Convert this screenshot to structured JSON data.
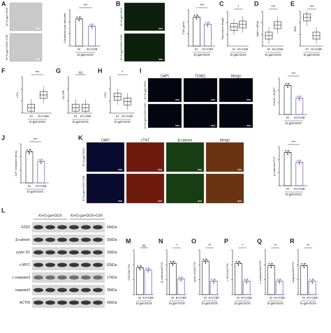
{
  "panels": [
    {
      "label": "A",
      "kind": "bar",
      "image_labels": [
        "KI+D-gal+DOX",
        "KI+D-gal+DOX+C59"
      ],
      "image_style": "bright",
      "y_label": "Cardiomyocyte diameter",
      "significance": "***",
      "groups": [
        "KI",
        "KI+C59"
      ],
      "treatment": "D-gal+DOX"
    },
    {
      "label": "B",
      "kind": "bar",
      "image_labels": [
        "KI+D-gal+DOX",
        "KI+D-gal+DOX+C59"
      ],
      "image_style": "wga",
      "y_label": "CSA (μm²)",
      "significance": "***",
      "groups": [
        "KI",
        "KI+C59"
      ],
      "treatment": "D-gal+DOX"
    },
    {
      "label": "C",
      "kind": "box",
      "y_label": "Sarcomere length",
      "significance": "*",
      "groups": [
        "KI",
        "KI+C59"
      ],
      "treatment": "D-gal+DOX"
    },
    {
      "label": "D",
      "kind": "box",
      "y_label": "Myh7 mRNA",
      "significance": "***",
      "groups": [
        "KI",
        "KI+C59"
      ],
      "treatment": "D-gal+DOX"
    },
    {
      "label": "E",
      "kind": "box",
      "y_label": "BNP",
      "significance": "***",
      "groups": [
        "KI",
        "KI+C59"
      ],
      "treatment": "D-gal+DOX"
    },
    {
      "label": "F",
      "kind": "box",
      "y_label": "cTnI",
      "significance": "***",
      "groups": [
        "KI",
        "KI+C59"
      ],
      "treatment": "D-gal+DOX"
    },
    {
      "label": "G",
      "kind": "box",
      "y_label": "CK-MB",
      "significance": "ns",
      "groups": [
        "KI",
        "KI+C59"
      ],
      "treatment": "D-gal+DOX"
    },
    {
      "label": "H",
      "kind": "box",
      "y_label": "LDH",
      "significance": "*",
      "groups": [
        "KI",
        "KI+C59"
      ],
      "treatment": "D-gal+DOX"
    },
    {
      "label": "I",
      "kind": "bar",
      "image_headers": [
        "DAPI",
        "TUNEL",
        "Merge"
      ],
      "image_labels": [
        "KI+D-gal+DOX",
        "KI+D-gal+DOX+C59"
      ],
      "y_label": "TUNEL⁺/DAPI⁺",
      "significance": "***",
      "groups": [
        "KI",
        "KI+C59"
      ],
      "treatment": "D-gal+DOX"
    },
    {
      "label": "J",
      "kind": "bar",
      "y_label": "Ca²⁺ transient decay",
      "significance": "***",
      "groups": [
        "KI",
        "KI+C59"
      ],
      "treatment": "D-gal+DOX"
    },
    {
      "label": "K",
      "kind": "bar",
      "image_headers": [
        "DAPI",
        "cTNT",
        "β-catenin",
        "Merge"
      ],
      "image_labels": [
        "KI+D-gal+DOX",
        "KI+D-gal+DOX+C59"
      ],
      "y_label": "β-catenin/cTNT",
      "significance": "***",
      "groups": [
        "KI",
        "KI+C59"
      ],
      "treatment": "D-gal+DOX"
    },
    {
      "label": "L",
      "kind": "blot",
      "lanes": [
        "KI+D-gal+DOX",
        "KI+D-gal+DOX+C59"
      ],
      "proteins": [
        "FZD2",
        "β-catenin",
        "cyclin D1",
        "c-MYC",
        "c-caspase3",
        "caspase3",
        "ACTIN"
      ],
      "sizes": [
        "64kDa",
        "92kDa",
        "33kDa",
        "62kDa",
        "17kDa",
        "35kDa",
        "42kDa"
      ]
    },
    {
      "label": "M",
      "kind": "bar",
      "y_label": "FZD2/ACTIN",
      "significance": "ns",
      "groups": [
        "KI",
        "KI+C59"
      ],
      "treatment": "D-gal+DOX"
    },
    {
      "label": "N",
      "kind": "bar",
      "y_label": "β-catenin/ACTIN",
      "significance": "*",
      "groups": [
        "KI",
        "KI+C59"
      ],
      "treatment": "D-gal+DOX"
    },
    {
      "label": "O",
      "kind": "bar",
      "y_label": "cyclin D1/ACTIN",
      "significance": "**",
      "groups": [
        "KI",
        "KI+C59"
      ],
      "treatment": "D-gal+DOX"
    },
    {
      "label": "P",
      "kind": "bar",
      "y_label": "c-MYC/ACTIN",
      "significance": "*",
      "groups": [
        "KI",
        "KI+C59"
      ],
      "treatment": "D-gal+DOX"
    },
    {
      "label": "Q",
      "kind": "bar",
      "y_label": "c-caspase3/ACTIN",
      "significance": "**",
      "groups": [
        "KI",
        "KI+C59"
      ],
      "treatment": "D-gal+DOX"
    },
    {
      "label": "R",
      "kind": "bar",
      "y_label": "caspase3/ACTIN",
      "significance": "**",
      "groups": [
        "KI",
        "KI+C59"
      ],
      "treatment": "D-gal+DOX"
    }
  ]
}
